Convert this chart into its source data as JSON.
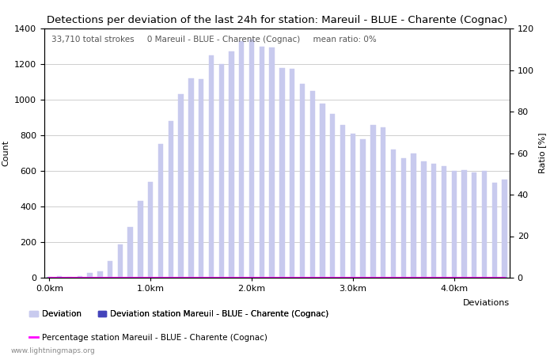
{
  "title": "Detections per deviation of the last 24h for station: Mareuil - BLUE - Charente (Cognac)",
  "annotation": "33,710 total strokes     0 Mareuil - BLUE - Charente (Cognac)     mean ratio: 0%",
  "ylabel_left": "Count",
  "ylabel_right": "Ratio [%]",
  "xlabel": "Deviations",
  "ylim_left": [
    0,
    1400
  ],
  "ylim_right": [
    0,
    120
  ],
  "bar_color_light": "#c8caee",
  "bar_color_dark": "#4444bb",
  "background_color": "#ffffff",
  "grid_color": "#bbbbbb",
  "watermark": "www.lightningmaps.org",
  "counts": [
    5,
    10,
    5,
    8,
    25,
    35,
    95,
    185,
    285,
    430,
    540,
    750,
    880,
    1030,
    1120,
    1115,
    1250,
    1200,
    1270,
    1330,
    1340,
    1300,
    1295,
    1180,
    1175,
    1090,
    1050,
    980,
    920,
    860,
    810,
    780,
    860,
    845,
    720,
    670,
    700,
    655,
    640,
    625,
    600,
    605,
    590,
    600,
    535,
    550
  ],
  "station_counts": [
    0,
    0,
    0,
    0,
    0,
    0,
    0,
    0,
    0,
    0,
    0,
    0,
    0,
    0,
    0,
    0,
    0,
    0,
    0,
    0,
    0,
    0,
    0,
    0,
    0,
    0,
    0,
    0,
    0,
    0,
    0,
    0,
    0,
    0,
    0,
    0,
    0,
    0,
    0,
    0,
    0,
    0,
    0,
    0,
    0,
    0
  ],
  "percentages": [
    0,
    0,
    0,
    0,
    0,
    0,
    0,
    0,
    0,
    0,
    0,
    0,
    0,
    0,
    0,
    0,
    0,
    0,
    0,
    0,
    0,
    0,
    0,
    0,
    0,
    0,
    0,
    0,
    0,
    0,
    0,
    0,
    0,
    0,
    0,
    0,
    0,
    0,
    0,
    0,
    0,
    0,
    0,
    0,
    0,
    0
  ],
  "title_fontsize": 9.5,
  "axis_fontsize": 8,
  "tick_fontsize": 8,
  "legend_fontsize": 7.5,
  "annotation_fontsize": 7.5,
  "watermark_fontsize": 6.5
}
